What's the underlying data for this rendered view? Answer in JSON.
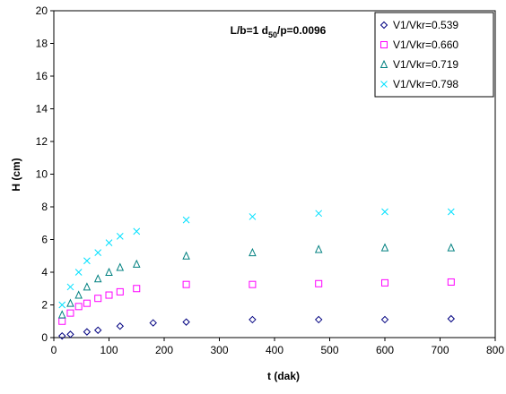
{
  "chart_data": {
    "type": "scatter",
    "annotation": [
      "L/b=1  d",
      "50",
      "/p=0.0096"
    ],
    "x_label": "t (dak)",
    "y_label": "H (cm)",
    "xlim": [
      0,
      800
    ],
    "xticks": [
      0,
      100,
      200,
      300,
      400,
      500,
      600,
      700,
      800
    ],
    "ylim": [
      0,
      20
    ],
    "yticks": [
      0,
      2,
      4,
      6,
      8,
      10,
      12,
      14,
      16,
      18,
      20
    ],
    "legend": "upper right",
    "series": [
      {
        "name": "V1/Vkr=0.539",
        "color": "#000080",
        "marker": "diamond",
        "x": [
          15,
          30,
          60,
          80,
          120,
          180,
          240,
          360,
          480,
          600,
          720
        ],
        "values": [
          0.1,
          0.2,
          0.35,
          0.45,
          0.7,
          0.9,
          0.95,
          1.1,
          1.1,
          1.1,
          1.15
        ]
      },
      {
        "name": "V1/Vkr=0.660",
        "color": "#ff00ff",
        "marker": "square",
        "x": [
          15,
          30,
          45,
          60,
          80,
          100,
          120,
          150,
          240,
          360,
          480,
          600,
          720
        ],
        "values": [
          1.0,
          1.5,
          1.9,
          2.1,
          2.4,
          2.6,
          2.8,
          3.0,
          3.25,
          3.25,
          3.3,
          3.35,
          3.4
        ]
      },
      {
        "name": "V1/Vkr=0.719",
        "color": "#008080",
        "marker": "triangle",
        "x": [
          15,
          30,
          45,
          60,
          80,
          100,
          120,
          150,
          240,
          360,
          480,
          600,
          720
        ],
        "values": [
          1.4,
          2.1,
          2.6,
          3.1,
          3.6,
          4.0,
          4.3,
          4.5,
          5.0,
          5.2,
          5.4,
          5.5,
          5.5
        ]
      },
      {
        "name": "V1/Vkr=0.798",
        "color": "#00e0ff",
        "marker": "cross",
        "x": [
          15,
          30,
          45,
          60,
          80,
          100,
          120,
          150,
          240,
          360,
          480,
          600,
          720
        ],
        "values": [
          2.0,
          3.1,
          4.0,
          4.7,
          5.2,
          5.8,
          6.2,
          6.5,
          7.2,
          7.4,
          7.6,
          7.7,
          7.7
        ]
      }
    ]
  }
}
